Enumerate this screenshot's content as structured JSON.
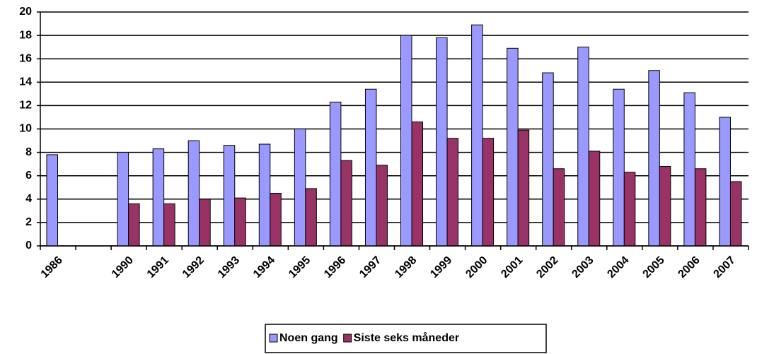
{
  "chart_data": {
    "type": "bar",
    "categories": [
      "1986",
      null,
      "1990",
      "1991",
      "1992",
      "1993",
      "1994",
      "1995",
      "1996",
      "1997",
      "1998",
      "1999",
      "2000",
      "2001",
      "2002",
      "2003",
      "2004",
      "2005",
      "2006",
      "2007"
    ],
    "series": [
      {
        "name": "Noen gang",
        "color": "#9999ff",
        "values": [
          7.8,
          null,
          8.0,
          8.3,
          9.0,
          8.6,
          8.7,
          10.0,
          12.3,
          13.4,
          18.0,
          17.8,
          18.9,
          16.9,
          14.8,
          17.0,
          13.4,
          15.0,
          13.1,
          11.0
        ]
      },
      {
        "name": "Siste seks måneder",
        "color": "#993366",
        "values": [
          null,
          null,
          3.6,
          3.6,
          4.0,
          4.1,
          4.5,
          4.9,
          7.3,
          6.9,
          10.6,
          9.2,
          9.2,
          9.9,
          6.6,
          8.1,
          6.3,
          6.8,
          6.6,
          5.5
        ]
      }
    ],
    "ylim": [
      0,
      20
    ],
    "yticks": [
      0,
      2,
      4,
      6,
      8,
      10,
      12,
      14,
      16,
      18,
      20
    ],
    "grid": true,
    "legend": "bottom"
  }
}
